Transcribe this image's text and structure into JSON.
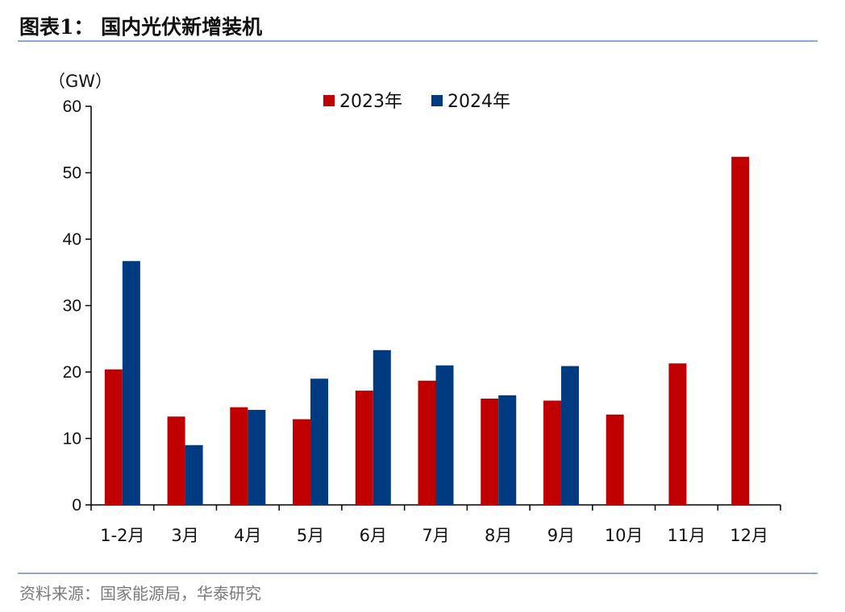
{
  "title": "图表1：  国内光伏新增装机",
  "source": "资料来源：国家能源局，华泰研究",
  "colors": {
    "series_2023": "#c00000",
    "series_2024": "#003a80",
    "rule": "#8ea9cf"
  },
  "chart_data": {
    "type": "bar",
    "unit_label": "（GW）",
    "categories": [
      "1-2月",
      "3月",
      "4月",
      "5月",
      "6月",
      "7月",
      "8月",
      "9月",
      "10月",
      "11月",
      "12月"
    ],
    "series": [
      {
        "name": "2023年",
        "values": [
          20.4,
          13.3,
          14.7,
          12.9,
          17.2,
          18.7,
          16.0,
          15.7,
          13.6,
          21.3,
          52.4
        ]
      },
      {
        "name": "2024年",
        "values": [
          36.7,
          9.0,
          14.3,
          19.0,
          23.3,
          21.0,
          16.5,
          20.9,
          null,
          null,
          null
        ]
      }
    ],
    "ylim": [
      0,
      60
    ],
    "yticks": [
      0,
      10,
      20,
      30,
      40,
      50,
      60
    ],
    "legend_position": "top-center",
    "grid": false
  }
}
